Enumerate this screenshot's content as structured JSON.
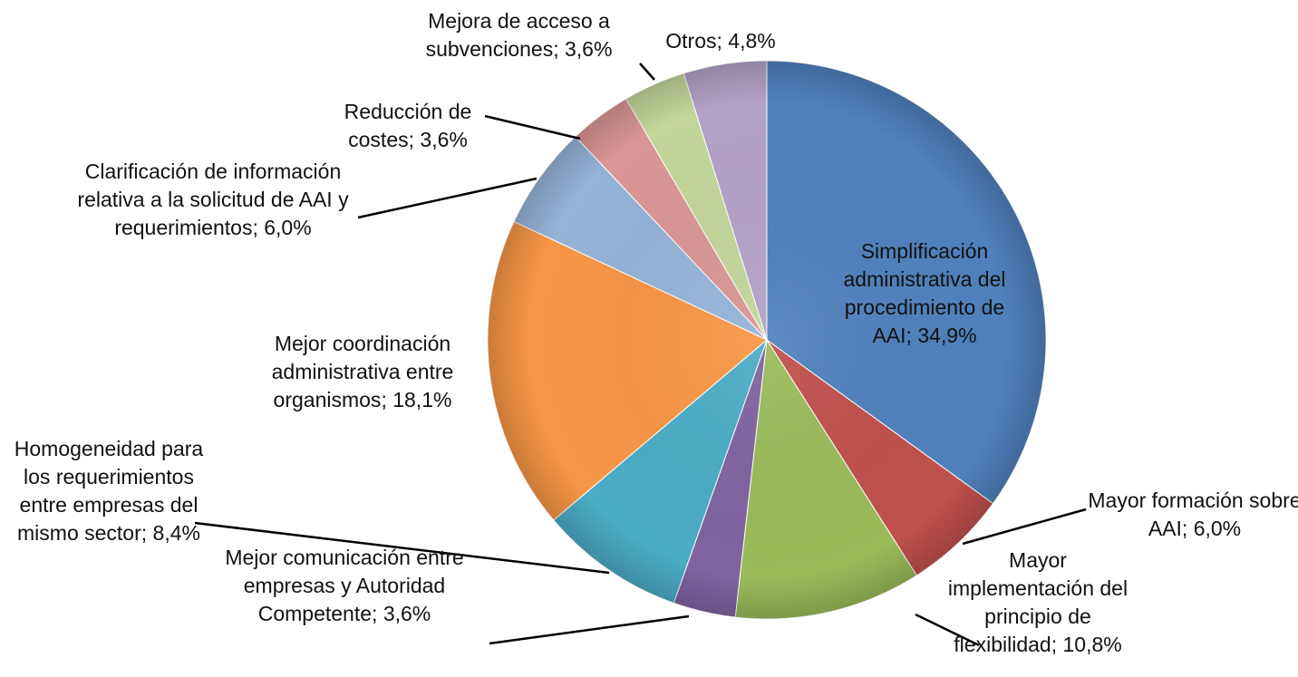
{
  "chart_data": {
    "type": "pie",
    "categories": [
      "Simplificación administrativa del procedimiento de AAI",
      "Mayor formación sobre AAI",
      "Mayor implementación del principio de flexibilidad",
      "Mejor comunicación entre empresas y Autoridad Competente",
      "Homogeneidad para los requerimientos entre empresas del mismo sector",
      "Mejor coordinación administrativa entre organismos",
      "Clarificación de información relativa a la solicitud de AAI y requerimientos",
      "Reducción de costes",
      "Mejora de acceso a subvenciones",
      "Otros"
    ],
    "values": [
      34.9,
      6.0,
      10.8,
      3.6,
      8.4,
      18.1,
      6.0,
      3.6,
      3.6,
      4.8
    ],
    "value_labels": [
      "34,9%",
      "6,0%",
      "10,8%",
      "3,6%",
      "8,4%",
      "18,1%",
      "6,0%",
      "3,6%",
      "3,6%",
      "4,8%"
    ],
    "label_separator": "; ",
    "colors": [
      "#4f81bd",
      "#c0504d",
      "#9bbb59",
      "#8064a2",
      "#4bacc6",
      "#f79646",
      "#95b3d7",
      "#d99694",
      "#c3d69b",
      "#b3a2c7"
    ]
  }
}
